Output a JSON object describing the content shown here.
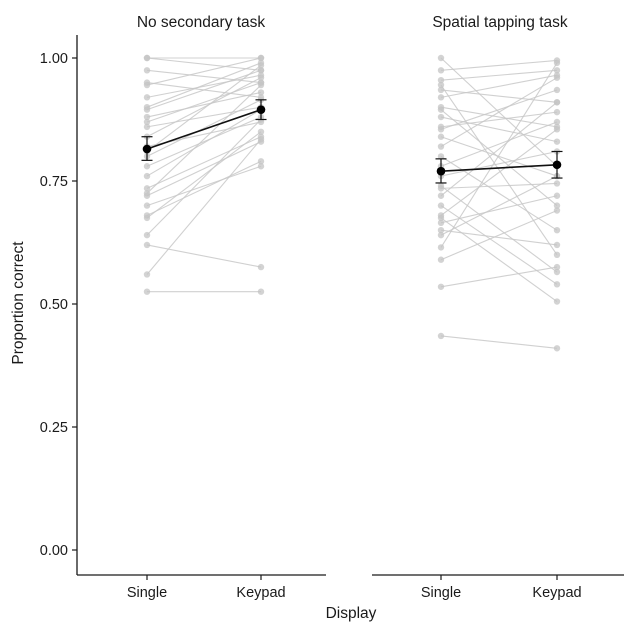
{
  "chart_data": {
    "type": "line",
    "xlabel": "Display",
    "ylabel": "Proportion correct",
    "categories": [
      "Single",
      "Keypad"
    ],
    "ylim": [
      0,
      1.05
    ],
    "yticks": [
      "0.00",
      "0.25",
      "0.50",
      "0.75",
      "1.00"
    ],
    "ytick_values": [
      0,
      0.25,
      0.5,
      0.75,
      1.0
    ],
    "grid": false,
    "legend": "none",
    "colors": {
      "subject": "#c4c4c4",
      "mean": "#000000"
    },
    "panels": [
      {
        "title": "No secondary task",
        "subjects": [
          [
            1.0,
            0.975
          ],
          [
            1.0,
            1.0
          ],
          [
            0.975,
            0.95
          ],
          [
            0.95,
            0.92
          ],
          [
            0.945,
            1.0
          ],
          [
            0.92,
            0.965
          ],
          [
            0.9,
            0.99
          ],
          [
            0.895,
            0.975
          ],
          [
            0.88,
            0.93
          ],
          [
            0.87,
            0.95
          ],
          [
            0.86,
            0.9
          ],
          [
            0.84,
            0.96
          ],
          [
            0.82,
            0.87
          ],
          [
            0.81,
            0.985
          ],
          [
            0.8,
            0.915
          ],
          [
            0.78,
            0.88
          ],
          [
            0.76,
            0.895
          ],
          [
            0.735,
            0.84
          ],
          [
            0.725,
            0.945
          ],
          [
            0.72,
            0.83
          ],
          [
            0.7,
            0.78
          ],
          [
            0.68,
            0.79
          ],
          [
            0.675,
            0.85
          ],
          [
            0.64,
            0.875
          ],
          [
            0.62,
            0.575
          ],
          [
            0.56,
            0.835
          ],
          [
            0.525,
            0.525
          ]
        ],
        "mean": [
          0.815,
          0.895
        ],
        "ci": [
          [
            0.792,
            0.84
          ],
          [
            0.875,
            0.915
          ]
        ]
      },
      {
        "title": "Spatial tapping task",
        "subjects": [
          [
            1.0,
            0.78
          ],
          [
            0.975,
            0.995
          ],
          [
            0.955,
            0.975
          ],
          [
            0.945,
            0.6
          ],
          [
            0.935,
            0.91
          ],
          [
            0.92,
            0.965
          ],
          [
            0.9,
            0.86
          ],
          [
            0.895,
            0.7
          ],
          [
            0.88,
            0.83
          ],
          [
            0.86,
            0.89
          ],
          [
            0.855,
            0.935
          ],
          [
            0.84,
            0.76
          ],
          [
            0.82,
            0.96
          ],
          [
            0.8,
            0.65
          ],
          [
            0.78,
            0.87
          ],
          [
            0.76,
            0.81
          ],
          [
            0.74,
            0.565
          ],
          [
            0.735,
            0.745
          ],
          [
            0.72,
            0.91
          ],
          [
            0.7,
            0.54
          ],
          [
            0.68,
            0.855
          ],
          [
            0.675,
            0.505
          ],
          [
            0.665,
            0.72
          ],
          [
            0.65,
            0.62
          ],
          [
            0.64,
            0.76
          ],
          [
            0.615,
            0.99
          ],
          [
            0.59,
            0.69
          ],
          [
            0.535,
            0.575
          ],
          [
            0.435,
            0.41
          ]
        ],
        "mean": [
          0.77,
          0.783
        ],
        "ci": [
          [
            0.746,
            0.795
          ],
          [
            0.756,
            0.81
          ]
        ]
      }
    ]
  }
}
